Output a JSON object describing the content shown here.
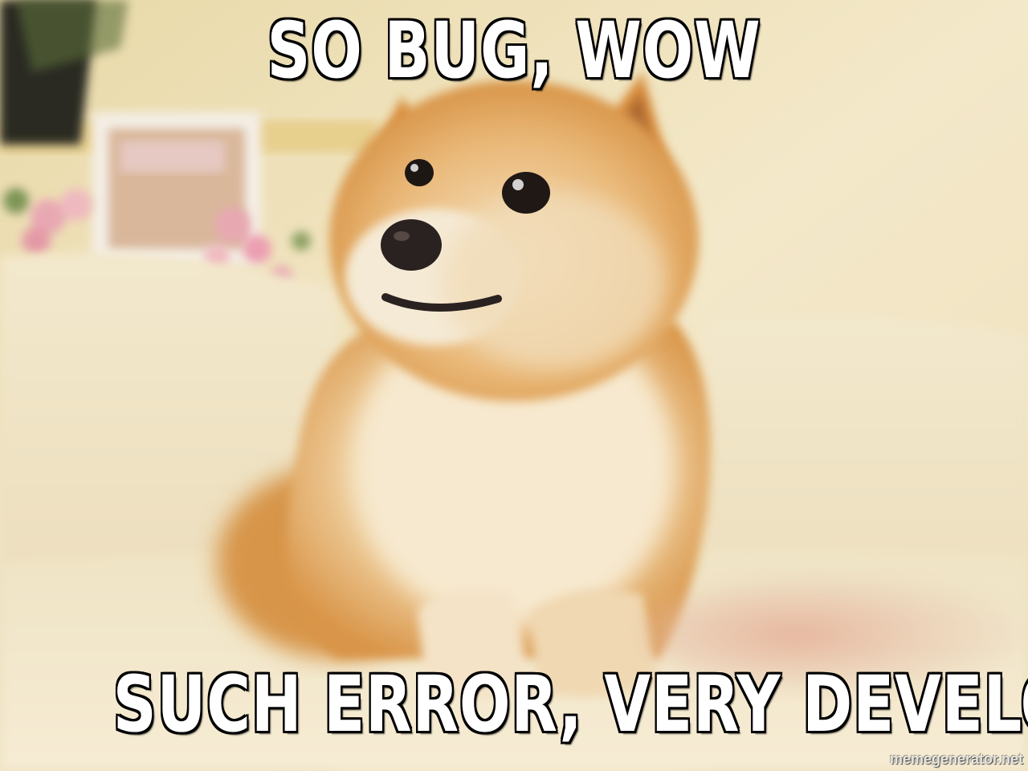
{
  "meme": {
    "top_text": "SO BUG, WOW",
    "bottom_text": "SUCH ERROR, VERY DEVELOPER",
    "watermark": "memegenerator.net"
  },
  "photo": {
    "subject": "shiba-inu-dog",
    "colors": {
      "wall": "#f2e6c8",
      "couch": "#efe2bf",
      "fur_orange": "#d99a4e",
      "fur_cream": "#f6e7cc",
      "nose": "#2a2220"
    }
  }
}
